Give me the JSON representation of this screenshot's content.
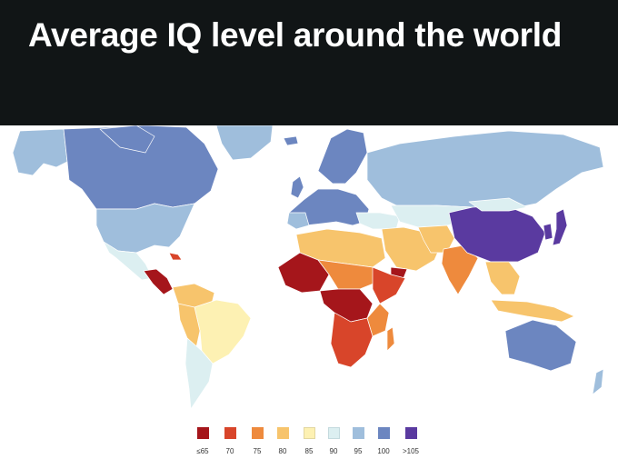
{
  "header": {
    "title": "Average IQ level around the world"
  },
  "legend": {
    "items": [
      {
        "label": "≤65",
        "color": "#a5161b"
      },
      {
        "label": "70",
        "color": "#d8452a"
      },
      {
        "label": "75",
        "color": "#ee8a3d"
      },
      {
        "label": "80",
        "color": "#f7c46c"
      },
      {
        "label": "85",
        "color": "#fdf1b3"
      },
      {
        "label": "90",
        "color": "#dceff1"
      },
      {
        "label": "95",
        "color": "#9fbedc"
      },
      {
        "label": "100",
        "color": "#6c86c0"
      },
      {
        "label": ">105",
        "color": "#5a3aa0"
      }
    ]
  },
  "colors": {
    "header_bg": "#111516",
    "ocean": "#ffffff",
    "borders": "#ffffff"
  }
}
